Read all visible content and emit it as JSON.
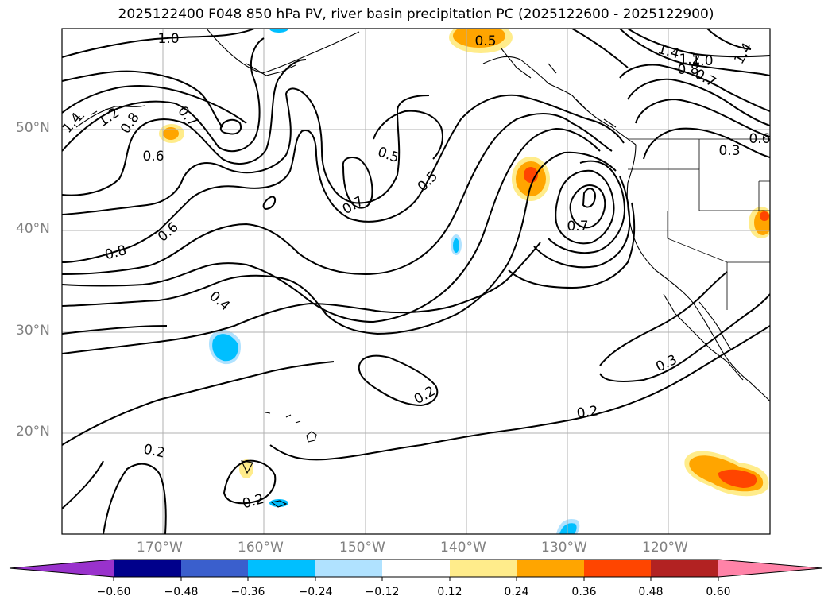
{
  "title": "2025122400 F048 850 hPa PV, river basin precipitation PC (2025122600 - 2025122900)",
  "lat_labels": [
    "50°N",
    "40°N",
    "30°N",
    "20°N"
  ],
  "lon_labels": [
    "170°W",
    "160°W",
    "150°W",
    "140°W",
    "130°W",
    "120°W"
  ],
  "contour_labels": [
    "1.0",
    "1.4",
    "1.2",
    "0.8",
    "0.7",
    "0.6",
    "0.6",
    "0.8",
    "0.4",
    "0.5",
    "0.5",
    "0.7",
    "0.7",
    "0.5",
    "1.4",
    "1.2",
    "1.0",
    "0.8",
    "0.7",
    "1.4",
    "0.3",
    "0.6",
    "0.3",
    "0.2",
    "0.2",
    "0.2",
    "0.2"
  ],
  "colorbar": {
    "ticks": [
      "−0.60",
      "−0.48",
      "−0.36",
      "−0.24",
      "−0.12",
      "0.12",
      "0.24",
      "0.36",
      "0.48",
      "0.60"
    ],
    "colors": [
      "#9932cc",
      "#00008b",
      "#3a5fcd",
      "#00bfff",
      "#b0e2ff",
      "#ffffff",
      "#ffec8b",
      "#ffa500",
      "#ff4500",
      "#b22222",
      "#ff83a8"
    ]
  },
  "shading_colors": {
    "light_blue": "#b0e2ff",
    "blue": "#00bfff",
    "yellow": "#ffec8b",
    "orange": "#ffa500",
    "red": "#ff4500"
  }
}
